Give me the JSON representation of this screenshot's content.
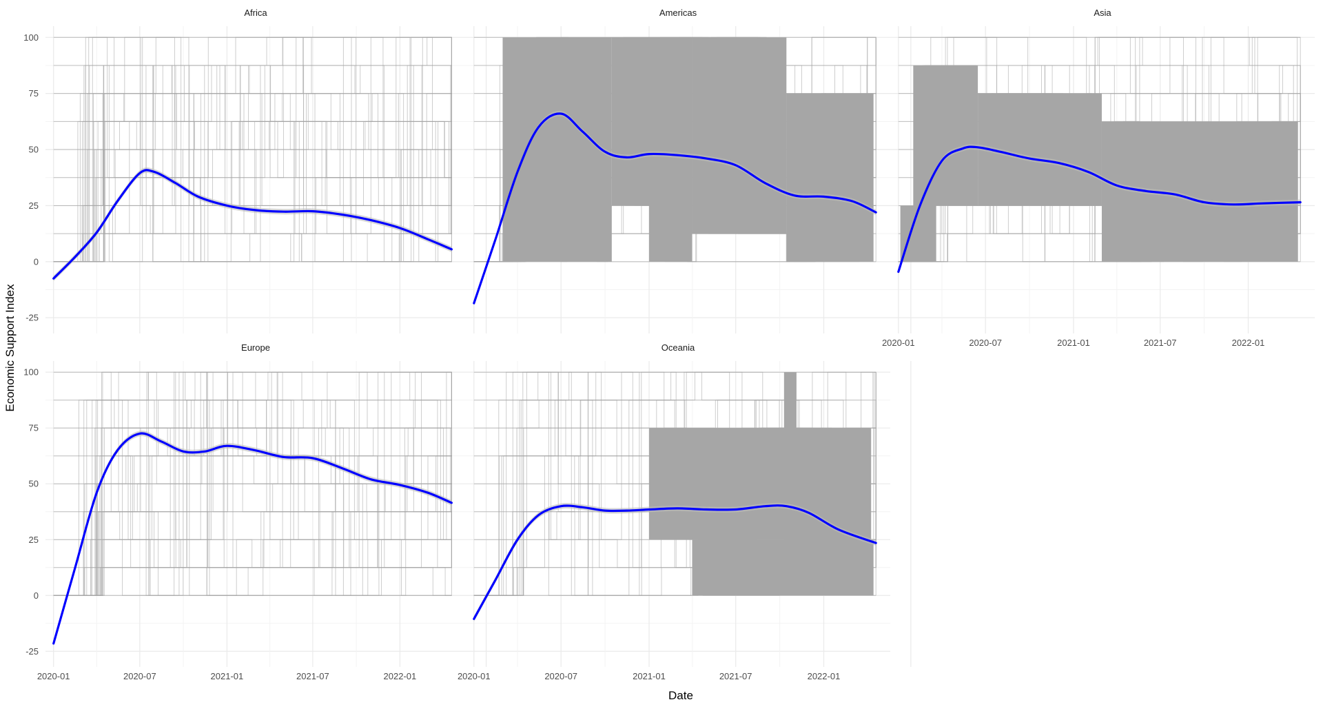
{
  "chart_data": {
    "type": "line",
    "facet_by": "Region",
    "xlabel": "Date",
    "ylabel": "Economic Support Index",
    "x_range": [
      "2019-12-15",
      "2022-05-20"
    ],
    "ylim": [
      -32,
      105
    ],
    "y_ticks": [
      -25,
      0,
      25,
      50,
      75,
      100
    ],
    "x_tick_labels": [
      "2020-01",
      "2020-07",
      "2021-01",
      "2021-07",
      "2022-01"
    ],
    "x_ticks": [
      "2020-01-01",
      "2020-07-01",
      "2021-01-01",
      "2021-07-01",
      "2022-01-01"
    ],
    "grid": true,
    "colors": {
      "smooth": "#0000ff",
      "raw": "#a6a6a6",
      "ribbon": "#bdbdbd",
      "grid": "#ebebeb"
    },
    "facets": [
      {
        "title": "Africa",
        "raw_style": "sparse",
        "first_date": "2020-01-01",
        "last_date": "2022-04-20",
        "levels": [
          0,
          12.5,
          25,
          37.5,
          50,
          62.5,
          75,
          87.5,
          100
        ],
        "smooth": {
          "x": [
            "2020-01-01",
            "2020-02-15",
            "2020-04-01",
            "2020-05-15",
            "2020-07-01",
            "2020-08-01",
            "2020-09-15",
            "2020-11-01",
            "2021-01-01",
            "2021-03-01",
            "2021-05-01",
            "2021-07-01",
            "2021-09-01",
            "2021-11-01",
            "2022-01-01",
            "2022-03-01",
            "2022-04-20"
          ],
          "y": [
            -7.5,
            2,
            13,
            27,
            39.5,
            40,
            35,
            29,
            25,
            23,
            22.3,
            22.5,
            21,
            18.5,
            15,
            10,
            5.5
          ]
        }
      },
      {
        "title": "Americas",
        "raw_style": "dense",
        "first_date": "2020-01-01",
        "last_date": "2022-04-20",
        "levels": [
          0,
          12.5,
          25,
          37.5,
          50,
          62.5,
          75,
          87.5,
          100
        ],
        "dense_blocks": [
          {
            "from": "2020-03-01",
            "to": "2020-10-15",
            "lo": 0,
            "hi": 100
          },
          {
            "from": "2020-10-15",
            "to": "2021-04-01",
            "lo": 25,
            "hi": 100
          },
          {
            "from": "2021-01-01",
            "to": "2021-04-01",
            "lo": 0,
            "hi": 25
          },
          {
            "from": "2021-04-01",
            "to": "2021-10-15",
            "lo": 12.5,
            "hi": 100
          },
          {
            "from": "2021-10-15",
            "to": "2022-04-15",
            "lo": 0,
            "hi": 75
          }
        ],
        "smooth": {
          "x": [
            "2020-01-01",
            "2020-02-15",
            "2020-04-01",
            "2020-05-15",
            "2020-07-01",
            "2020-08-15",
            "2020-10-01",
            "2020-11-15",
            "2021-01-01",
            "2021-03-01",
            "2021-05-01",
            "2021-07-01",
            "2021-09-01",
            "2021-11-01",
            "2022-01-01",
            "2022-03-01",
            "2022-04-20"
          ],
          "y": [
            -18.5,
            10,
            40,
            60,
            66,
            58,
            49,
            46.5,
            48,
            47.5,
            46,
            43,
            35,
            29.5,
            29,
            27,
            22
          ]
        }
      },
      {
        "title": "Asia",
        "raw_style": "dense",
        "first_date": "2020-01-01",
        "last_date": "2022-04-20",
        "levels": [
          0,
          12.5,
          25,
          37.5,
          50,
          62.5,
          75,
          87.5,
          100
        ],
        "dense_blocks": [
          {
            "from": "2020-01-05",
            "to": "2020-03-20",
            "lo": 0,
            "hi": 25
          },
          {
            "from": "2020-02-01",
            "to": "2020-06-15",
            "lo": 25,
            "hi": 87.5
          },
          {
            "from": "2020-06-15",
            "to": "2021-03-01",
            "lo": 25,
            "hi": 75
          },
          {
            "from": "2021-03-01",
            "to": "2022-04-15",
            "lo": 0,
            "hi": 62.5
          }
        ],
        "smooth": {
          "x": [
            "2020-01-01",
            "2020-02-15",
            "2020-04-01",
            "2020-05-15",
            "2020-06-15",
            "2020-08-01",
            "2020-10-01",
            "2020-12-01",
            "2021-02-01",
            "2021-04-01",
            "2021-06-01",
            "2021-08-01",
            "2021-10-01",
            "2021-12-01",
            "2022-02-01",
            "2022-04-20"
          ],
          "y": [
            -4.5,
            25,
            45,
            50.5,
            51,
            49,
            46,
            44,
            40,
            34,
            31.5,
            30,
            26.5,
            25.5,
            26,
            26.5
          ]
        }
      },
      {
        "title": "Europe",
        "raw_style": "sparse",
        "first_date": "2020-01-01",
        "last_date": "2022-04-20",
        "levels": [
          0,
          12.5,
          25,
          37.5,
          50,
          62.5,
          75,
          87.5,
          100
        ],
        "smooth": {
          "x": [
            "2020-01-01",
            "2020-02-15",
            "2020-04-01",
            "2020-05-15",
            "2020-07-01",
            "2020-08-15",
            "2020-10-01",
            "2020-11-15",
            "2021-01-01",
            "2021-03-01",
            "2021-05-01",
            "2021-07-01",
            "2021-09-01",
            "2021-11-01",
            "2022-01-01",
            "2022-03-01",
            "2022-04-20"
          ],
          "y": [
            -21.5,
            12,
            46,
            65,
            72.5,
            69,
            64.5,
            64.5,
            67,
            65,
            62,
            61.5,
            57,
            52,
            49.5,
            46,
            41.5
          ]
        }
      },
      {
        "title": "Oceania",
        "raw_style": "dense",
        "first_date": "2020-01-01",
        "last_date": "2022-04-20",
        "levels": [
          0,
          12.5,
          25,
          37.5,
          50,
          62.5,
          75,
          87.5,
          100
        ],
        "dense_blocks": [
          {
            "from": "2021-01-01",
            "to": "2022-04-10",
            "lo": 25,
            "hi": 75
          },
          {
            "from": "2021-04-01",
            "to": "2022-04-15",
            "lo": 0,
            "hi": 25
          },
          {
            "from": "2021-10-10",
            "to": "2021-11-05",
            "lo": 75,
            "hi": 100
          }
        ],
        "smooth": {
          "x": [
            "2020-01-01",
            "2020-02-15",
            "2020-04-01",
            "2020-05-15",
            "2020-07-01",
            "2020-08-15",
            "2020-10-01",
            "2020-11-15",
            "2021-01-01",
            "2021-03-01",
            "2021-05-01",
            "2021-07-01",
            "2021-09-01",
            "2021-10-15",
            "2021-12-01",
            "2022-02-01",
            "2022-04-20"
          ],
          "y": [
            -10.5,
            7,
            25,
            36,
            40,
            39.5,
            38,
            38,
            38.5,
            39,
            38.5,
            38.5,
            40,
            40,
            37,
            29.5,
            23.5
          ]
        }
      }
    ]
  }
}
